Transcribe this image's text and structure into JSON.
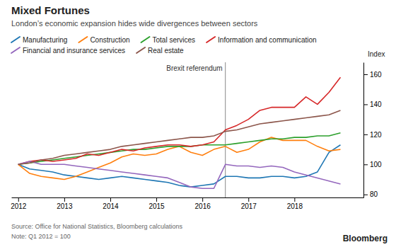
{
  "chart_data": {
    "type": "line",
    "title": "Mixed Fortunes",
    "subtitle": "London’s economic expansion hides wide divergences between sectors",
    "source": "Source: Office for National Statistics, Bloomberg calculations",
    "note": "Note: Q1 2012 = 100",
    "credit": "Bloomberg",
    "y_label": "Index",
    "annotations": [
      {
        "text": "Brexit referendum",
        "x": 2016.5
      }
    ],
    "x": [
      2012.0,
      2012.25,
      2012.5,
      2012.75,
      2013.0,
      2013.25,
      2013.5,
      2013.75,
      2014.0,
      2014.25,
      2014.5,
      2014.75,
      2015.0,
      2015.25,
      2015.5,
      2015.75,
      2016.0,
      2016.25,
      2016.5,
      2016.75,
      2017.0,
      2017.25,
      2017.5,
      2017.75,
      2018.0,
      2018.25,
      2018.5,
      2018.75,
      2019.0
    ],
    "xlim": [
      2011.85,
      2019.5
    ],
    "xticks": [
      2012,
      2013,
      2014,
      2015,
      2016,
      2017,
      2018
    ],
    "ylim": [
      78,
      168
    ],
    "yticks": [
      80,
      100,
      120,
      140,
      160
    ],
    "grid": false,
    "legend": "top",
    "series": [
      {
        "name": "Manufacturing",
        "values": [
          100,
          97,
          96,
          95,
          93,
          92,
          91,
          90,
          91,
          92,
          91,
          90,
          89,
          88,
          86,
          85,
          86,
          87,
          92,
          92,
          91,
          91,
          92,
          92,
          91,
          92,
          95,
          108,
          113
        ]
      },
      {
        "name": "Construction",
        "values": [
          100,
          94,
          92,
          91,
          90,
          92,
          95,
          98,
          101,
          105,
          107,
          106,
          107,
          110,
          112,
          108,
          106,
          110,
          112,
          108,
          110,
          115,
          118,
          116,
          116,
          116,
          112,
          109,
          110
        ]
      },
      {
        "name": "Total services",
        "values": [
          100,
          101,
          102,
          103,
          104,
          105,
          106,
          107,
          108,
          109,
          110,
          110,
          111,
          112,
          112,
          112,
          113,
          113,
          113,
          114,
          115,
          116,
          117,
          117,
          118,
          118,
          119,
          119,
          121
        ]
      },
      {
        "name": "Information and communication",
        "values": [
          100,
          102,
          103,
          102,
          103,
          104,
          107,
          106,
          108,
          110,
          109,
          111,
          112,
          113,
          113,
          112,
          113,
          115,
          123,
          126,
          130,
          136,
          138,
          138,
          138,
          145,
          140,
          148,
          158
        ]
      },
      {
        "name": "Financial and insurance services",
        "values": [
          100,
          102,
          100,
          100,
          100,
          99,
          98,
          97,
          96,
          95,
          94,
          93,
          92,
          91,
          88,
          85,
          84,
          84,
          100,
          99,
          99,
          98,
          99,
          98,
          95,
          93,
          91,
          89,
          87
        ]
      },
      {
        "name": "Real estate",
        "values": [
          100,
          101,
          103,
          104,
          106,
          107,
          108,
          109,
          110,
          112,
          113,
          114,
          115,
          116,
          117,
          118,
          118,
          119,
          122,
          123,
          125,
          127,
          128,
          129,
          130,
          131,
          132,
          133,
          136
        ]
      }
    ]
  }
}
